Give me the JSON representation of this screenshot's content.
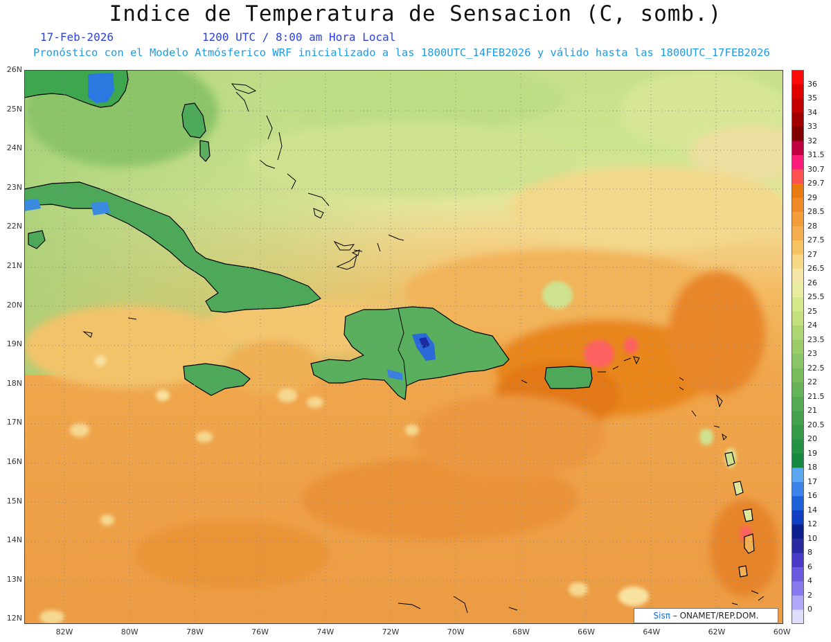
{
  "title": "Indice de Temperatura de Sensacion (C, somb.)",
  "date": "17-Feb-2026",
  "time": "1200 UTC / 8:00 am Hora Local",
  "forecast_note": "Pronóstico con el Modelo Atmósferico WRF inicializado a las 1800UTC_14FEB2026 y válido hasta las  1800UTC_17FEB2026",
  "lat_labels": [
    "26N",
    "25N",
    "24N",
    "23N",
    "22N",
    "21N",
    "20N",
    "19N",
    "18N",
    "17N",
    "16N",
    "15N",
    "14N",
    "13N",
    "12N"
  ],
  "lon_labels": [
    "82W",
    "80W",
    "78W",
    "76W",
    "74W",
    "72W",
    "70W",
    "68W",
    "66W",
    "64W",
    "62W",
    "60W"
  ],
  "colorbar": {
    "levels": [
      "36",
      "35",
      "34",
      "33",
      "32",
      "31.5",
      "30.7",
      "29.7",
      "29",
      "28.5",
      "28",
      "27.5",
      "27",
      "26.5",
      "26",
      "25.5",
      "25",
      "24",
      "23.5",
      "23",
      "22.5",
      "22",
      "21.5",
      "21",
      "20.5",
      "20",
      "19",
      "18",
      "17",
      "16",
      "14",
      "12",
      "10",
      "8",
      "6",
      "4",
      "2",
      "0"
    ],
    "colors": [
      "#ff0a0a",
      "#e00000",
      "#c40000",
      "#a00000",
      "#800000",
      "#c00040",
      "#ff1c7a",
      "#ff5050",
      "#e87a10",
      "#f08c28",
      "#f29c3c",
      "#f4ae4e",
      "#f6c262",
      "#f8d884",
      "#f4e6a8",
      "#e8eca0",
      "#d4e88c",
      "#c2e07e",
      "#aed672",
      "#9ccc6a",
      "#8ac464",
      "#78bc5e",
      "#66b458",
      "#54ac52",
      "#44a24c",
      "#349a48",
      "#249244",
      "#148a40",
      "#5aa8f0",
      "#3a86e8",
      "#1c60d8",
      "#1040c0",
      "#0c1f8c",
      "#2a2aa0",
      "#4a3ac8",
      "#6a5ae0",
      "#8a7af0",
      "#b0a8f8",
      "#e0dcfc"
    ]
  },
  "credit": {
    "brand": "Sisπ",
    "text": "– ONAMET/REP.DOM."
  },
  "map_colors": {
    "ocean_base": "#eea04a",
    "north_light": "#c9e08e",
    "land_green": "#4fa95a",
    "warm_patch": "#e2761a",
    "hot_patch": "#ff5a5a"
  }
}
